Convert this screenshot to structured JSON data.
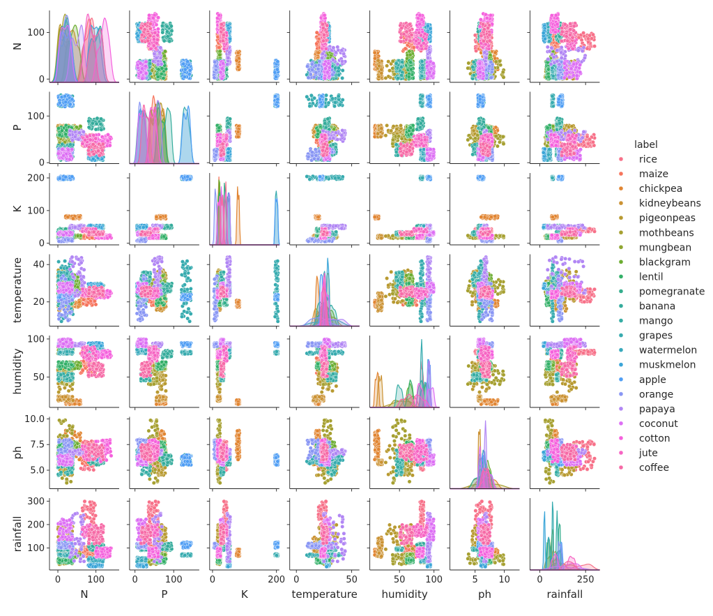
{
  "chart_data": {
    "type": "scatter",
    "layout": "pairplot",
    "diagonal": "kde",
    "grid": false,
    "variables": [
      {
        "name": "N",
        "xlim": [
          -22,
          161
        ],
        "ylim": [
          -7,
          147
        ],
        "xticks": [
          0,
          100
        ],
        "xtick_labels": [
          "0",
          "100"
        ],
        "yticks": [
          0,
          100
        ],
        "ytick_labels": [
          "0",
          "100"
        ]
      },
      {
        "name": "P",
        "xlim": [
          -14,
          166
        ],
        "ylim": [
          -2,
          152
        ],
        "xticks": [
          0,
          100
        ],
        "xtick_labels": [
          "0",
          "100"
        ],
        "yticks": [
          0,
          100
        ],
        "ytick_labels": [
          "0",
          "100"
        ]
      },
      {
        "name": "K",
        "xlim": [
          -9,
          209
        ],
        "ylim": [
          -5,
          215
        ],
        "xticks": [
          0,
          200
        ],
        "xtick_labels": [
          "0",
          "200"
        ],
        "yticks": [
          0,
          100,
          200
        ],
        "ytick_labels": [
          "0",
          "100",
          "200"
        ]
      },
      {
        "name": "temperature",
        "xlim": [
          -6,
          57
        ],
        "ylim": [
          7,
          45.5
        ],
        "xticks": [
          0,
          50
        ],
        "xtick_labels": [
          "0",
          "50"
        ],
        "yticks": [
          20,
          40
        ],
        "ytick_labels": [
          "20",
          "40"
        ]
      },
      {
        "name": "humidity",
        "xlim": [
          7,
          108
        ],
        "ylim": [
          10,
          104.5
        ],
        "xticks": [
          50,
          100
        ],
        "xtick_labels": [
          "50",
          "100"
        ],
        "yticks": [
          50,
          100
        ],
        "ytick_labels": [
          "50",
          "100"
        ]
      },
      {
        "name": "ph",
        "xlim": [
          0.7,
          12.6
        ],
        "ylim": [
          3.2,
          10.2
        ],
        "xticks": [
          5,
          10
        ],
        "xtick_labels": [
          "5",
          "10"
        ],
        "yticks": [
          5,
          7.5,
          10
        ],
        "ytick_labels": [
          "5.0",
          "7.5",
          "10.0"
        ]
      },
      {
        "name": "rainfall",
        "xlim": [
          -54,
          327
        ],
        "ylim": [
          6,
          313
        ],
        "xticks": [
          0,
          250
        ],
        "xtick_labels": [
          "0",
          "250"
        ],
        "yticks": [
          100,
          200,
          300
        ],
        "ytick_labels": [
          "100",
          "200",
          "300"
        ]
      }
    ],
    "legend": {
      "title": "label",
      "placement": "right",
      "items": [
        {
          "name": "rice",
          "color": "#f77189"
        },
        {
          "name": "maize",
          "color": "#f6745c"
        },
        {
          "name": "chickpea",
          "color": "#e18532"
        },
        {
          "name": "kidneybeans",
          "color": "#cb9233"
        },
        {
          "name": "pigeonpeas",
          "color": "#b89a31"
        },
        {
          "name": "mothbeans",
          "color": "#a6a031"
        },
        {
          "name": "mungbean",
          "color": "#8fa631"
        },
        {
          "name": "blackgram",
          "color": "#6cad31"
        },
        {
          "name": "lentil",
          "color": "#33b068"
        },
        {
          "name": "pomegranate",
          "color": "#35ae8d"
        },
        {
          "name": "banana",
          "color": "#35ac9c"
        },
        {
          "name": "mango",
          "color": "#36ada4"
        },
        {
          "name": "grapes",
          "color": "#37abaf"
        },
        {
          "name": "watermelon",
          "color": "#38a9bc"
        },
        {
          "name": "muskmelon",
          "color": "#3aa5d8"
        },
        {
          "name": "apple",
          "color": "#509ef4"
        },
        {
          "name": "orange",
          "color": "#8996f4"
        },
        {
          "name": "papaya",
          "color": "#b186f4"
        },
        {
          "name": "coconut",
          "color": "#dd6ff4"
        },
        {
          "name": "cotton",
          "color": "#f561dd"
        },
        {
          "name": "jute",
          "color": "#f664c3"
        },
        {
          "name": "coffee",
          "color": "#f66aa6"
        }
      ]
    },
    "clusters": {
      "rice": {
        "N": [
          60,
          99
        ],
        "P": [
          35,
          60
        ],
        "K": [
          35,
          45
        ],
        "temperature": [
          20,
          27
        ],
        "humidity": [
          80,
          85
        ],
        "ph": [
          5.0,
          7.9
        ],
        "rainfall": [
          182,
          299
        ]
      },
      "maize": {
        "N": [
          60,
          100
        ],
        "P": [
          35,
          60
        ],
        "K": [
          15,
          25
        ],
        "temperature": [
          18,
          27
        ],
        "humidity": [
          55,
          75
        ],
        "ph": [
          5.5,
          7.0
        ],
        "rainfall": [
          60,
          110
        ]
      },
      "chickpea": {
        "N": [
          20,
          60
        ],
        "P": [
          55,
          80
        ],
        "K": [
          75,
          85
        ],
        "temperature": [
          17,
          21
        ],
        "humidity": [
          14,
          20
        ],
        "ph": [
          6.0,
          8.9
        ],
        "rainfall": [
          65,
          95
        ]
      },
      "kidneybeans": {
        "N": [
          0,
          40
        ],
        "P": [
          55,
          80
        ],
        "K": [
          15,
          25
        ],
        "temperature": [
          15,
          25
        ],
        "humidity": [
          18,
          25
        ],
        "ph": [
          5.5,
          6.0
        ],
        "rainfall": [
          60,
          150
        ]
      },
      "pigeonpeas": {
        "N": [
          0,
          40
        ],
        "P": [
          55,
          80
        ],
        "K": [
          15,
          25
        ],
        "temperature": [
          18,
          37
        ],
        "humidity": [
          30,
          70
        ],
        "ph": [
          4.5,
          7.5
        ],
        "rainfall": [
          90,
          199
        ]
      },
      "mothbeans": {
        "N": [
          0,
          40
        ],
        "P": [
          35,
          60
        ],
        "K": [
          15,
          25
        ],
        "temperature": [
          24,
          32
        ],
        "humidity": [
          40,
          65
        ],
        "ph": [
          3.5,
          9.9
        ],
        "rainfall": [
          30,
          75
        ]
      },
      "mungbean": {
        "N": [
          0,
          40
        ],
        "P": [
          35,
          60
        ],
        "K": [
          15,
          25
        ],
        "temperature": [
          27,
          30
        ],
        "humidity": [
          80,
          90
        ],
        "ph": [
          6.2,
          7.2
        ],
        "rainfall": [
          36,
          60
        ]
      },
      "blackgram": {
        "N": [
          20,
          60
        ],
        "P": [
          55,
          80
        ],
        "K": [
          15,
          25
        ],
        "temperature": [
          25,
          35
        ],
        "humidity": [
          60,
          70
        ],
        "ph": [
          6.5,
          7.8
        ],
        "rainfall": [
          60,
          75
        ]
      },
      "lentil": {
        "N": [
          0,
          40
        ],
        "P": [
          55,
          80
        ],
        "K": [
          15,
          25
        ],
        "temperature": [
          18,
          30
        ],
        "humidity": [
          60,
          70
        ],
        "ph": [
          5.9,
          7.8
        ],
        "rainfall": [
          35,
          55
        ]
      },
      "pomegranate": {
        "N": [
          0,
          40
        ],
        "P": [
          5,
          30
        ],
        "K": [
          35,
          45
        ],
        "temperature": [
          18,
          25
        ],
        "humidity": [
          85,
          95
        ],
        "ph": [
          5.5,
          7.2
        ],
        "rainfall": [
          102,
          113
        ]
      },
      "banana": {
        "N": [
          80,
          120
        ],
        "P": [
          70,
          95
        ],
        "K": [
          45,
          55
        ],
        "temperature": [
          25,
          30
        ],
        "humidity": [
          75,
          85
        ],
        "ph": [
          5.5,
          6.5
        ],
        "rainfall": [
          90,
          120
        ]
      },
      "mango": {
        "N": [
          0,
          40
        ],
        "P": [
          15,
          40
        ],
        "K": [
          25,
          35
        ],
        "temperature": [
          27,
          36
        ],
        "humidity": [
          45,
          55
        ],
        "ph": [
          4.5,
          7.0
        ],
        "rainfall": [
          89,
          101
        ]
      },
      "grapes": {
        "N": [
          0,
          40
        ],
        "P": [
          120,
          145
        ],
        "K": [
          195,
          205
        ],
        "temperature": [
          9,
          42
        ],
        "humidity": [
          80,
          84
        ],
        "ph": [
          5.5,
          6.5
        ],
        "rainfall": [
          65,
          75
        ]
      },
      "watermelon": {
        "N": [
          80,
          120
        ],
        "P": [
          5,
          30
        ],
        "K": [
          45,
          55
        ],
        "temperature": [
          24,
          27
        ],
        "humidity": [
          80,
          90
        ],
        "ph": [
          6.0,
          7.0
        ],
        "rainfall": [
          40,
          60
        ]
      },
      "muskmelon": {
        "N": [
          80,
          120
        ],
        "P": [
          5,
          30
        ],
        "K": [
          45,
          55
        ],
        "temperature": [
          27,
          30
        ],
        "humidity": [
          90,
          95
        ],
        "ph": [
          6.0,
          6.8
        ],
        "rainfall": [
          20,
          30
        ]
      },
      "apple": {
        "N": [
          0,
          40
        ],
        "P": [
          120,
          145
        ],
        "K": [
          195,
          205
        ],
        "temperature": [
          21,
          24
        ],
        "humidity": [
          90,
          95
        ],
        "ph": [
          5.5,
          6.5
        ],
        "rainfall": [
          100,
          125
        ]
      },
      "orange": {
        "N": [
          0,
          40
        ],
        "P": [
          5,
          30
        ],
        "K": [
          5,
          15
        ],
        "temperature": [
          10,
          35
        ],
        "humidity": [
          90,
          95
        ],
        "ph": [
          6.0,
          8.0
        ],
        "rainfall": [
          100,
          120
        ]
      },
      "papaya": {
        "N": [
          31,
          70
        ],
        "P": [
          46,
          70
        ],
        "K": [
          45,
          55
        ],
        "temperature": [
          23,
          44
        ],
        "humidity": [
          90,
          95
        ],
        "ph": [
          6.5,
          7.0
        ],
        "rainfall": [
          40,
          249
        ]
      },
      "coconut": {
        "N": [
          0,
          40
        ],
        "P": [
          5,
          30
        ],
        "K": [
          25,
          35
        ],
        "temperature": [
          25,
          30
        ],
        "humidity": [
          90,
          100
        ],
        "ph": [
          5.5,
          6.5
        ],
        "rainfall": [
          130,
          225
        ]
      },
      "cotton": {
        "N": [
          100,
          140
        ],
        "P": [
          35,
          60
        ],
        "K": [
          15,
          25
        ],
        "temperature": [
          22,
          26
        ],
        "humidity": [
          75,
          85
        ],
        "ph": [
          5.8,
          8.0
        ],
        "rainfall": [
          60,
          100
        ]
      },
      "jute": {
        "N": [
          60,
          100
        ],
        "P": [
          35,
          60
        ],
        "K": [
          35,
          45
        ],
        "temperature": [
          23,
          27
        ],
        "humidity": [
          70,
          90
        ],
        "ph": [
          6.0,
          7.5
        ],
        "rainfall": [
          150,
          200
        ]
      },
      "coffee": {
        "N": [
          80,
          120
        ],
        "P": [
          15,
          40
        ],
        "K": [
          25,
          35
        ],
        "temperature": [
          23,
          28
        ],
        "humidity": [
          50,
          70
        ],
        "ph": [
          6.0,
          7.5
        ],
        "rainfall": [
          115,
          200
        ]
      }
    }
  }
}
